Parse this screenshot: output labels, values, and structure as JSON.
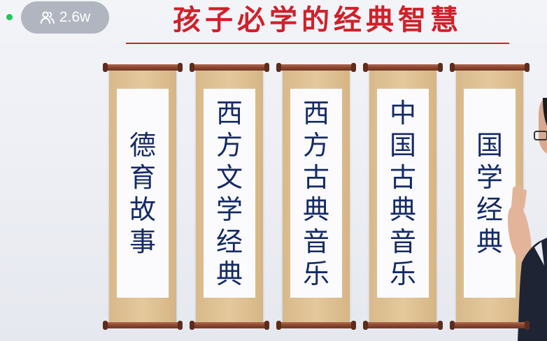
{
  "header": {
    "viewer_count": "2.6w",
    "viewer_icon": "people-icon",
    "live_indicator_color": "#22c55e"
  },
  "slide": {
    "title": "孩子必学的经典智慧",
    "title_color": "#d0202a",
    "scrolls": [
      {
        "text": "德育故事"
      },
      {
        "text": "西方文学经典"
      },
      {
        "text": "西方古典音乐"
      },
      {
        "text": "中国古典音乐"
      },
      {
        "text": "国学经典"
      }
    ]
  }
}
